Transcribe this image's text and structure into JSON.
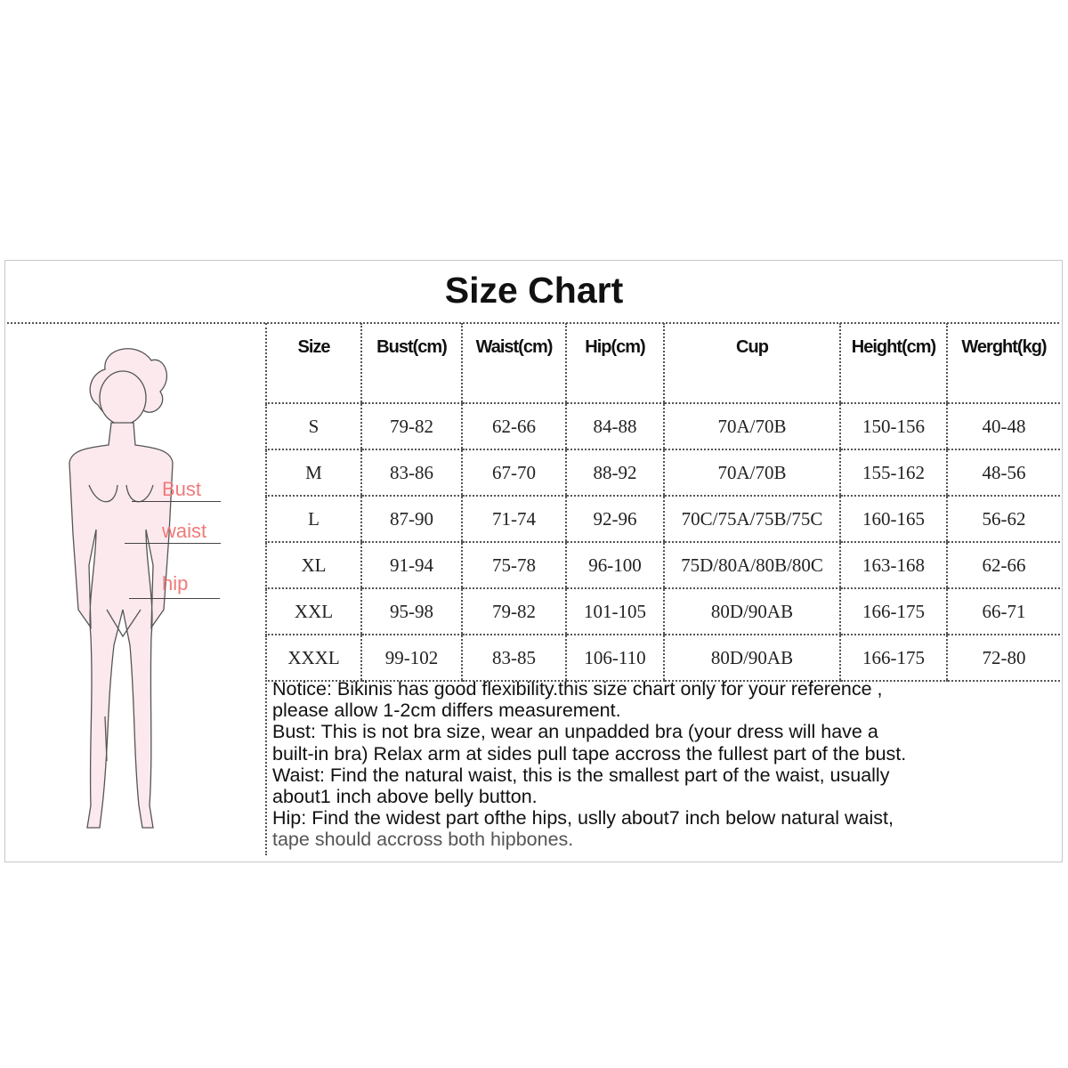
{
  "title": "Size Chart",
  "figure_labels": {
    "bust": "Bust",
    "waist": "waist",
    "hip": "hip"
  },
  "colors": {
    "label": "#f07a7a",
    "figure_fill": "#fbe9ee"
  },
  "table": {
    "headers": [
      "Size",
      "Bust(cm)",
      "Waist(cm)",
      "Hip(cm)",
      "Cup",
      "Height(cm)",
      "Werght(kg)"
    ],
    "rows": [
      [
        "S",
        "79-82",
        "62-66",
        "84-88",
        "70A/70B",
        "150-156",
        "40-48"
      ],
      [
        "M",
        "83-86",
        "67-70",
        "88-92",
        "70A/70B",
        "155-162",
        "48-56"
      ],
      [
        "L",
        "87-90",
        "71-74",
        "92-96",
        "70C/75A/75B/75C",
        "160-165",
        "56-62"
      ],
      [
        "XL",
        "91-94",
        "75-78",
        "96-100",
        "75D/80A/80B/80C",
        "163-168",
        "62-66"
      ],
      [
        "XXL",
        "95-98",
        "79-82",
        "101-105",
        "80D/90AB",
        "166-175",
        "66-71"
      ],
      [
        "XXXL",
        "99-102",
        "83-85",
        "106-110",
        "80D/90AB",
        "166-175",
        "72-80"
      ]
    ]
  },
  "notice": [
    "Notice: Bikinis has good flexibility.this size chart only for your reference ,",
    "please allow 1-2cm differs measurement.",
    "Bust: This is not bra size, wear an unpadded bra (your dress will have a",
    "built-in bra) Relax arm at sides pull tape accross the fullest part of the bust.",
    "Waist:  Find the natural waist, this is the smallest part of the waist, usually",
    "about1 inch above belly button.",
    "Hip: Find the widest part  ofthe hips, uslly about7 inch below natural waist,",
    "tape should accross both hipbones."
  ]
}
